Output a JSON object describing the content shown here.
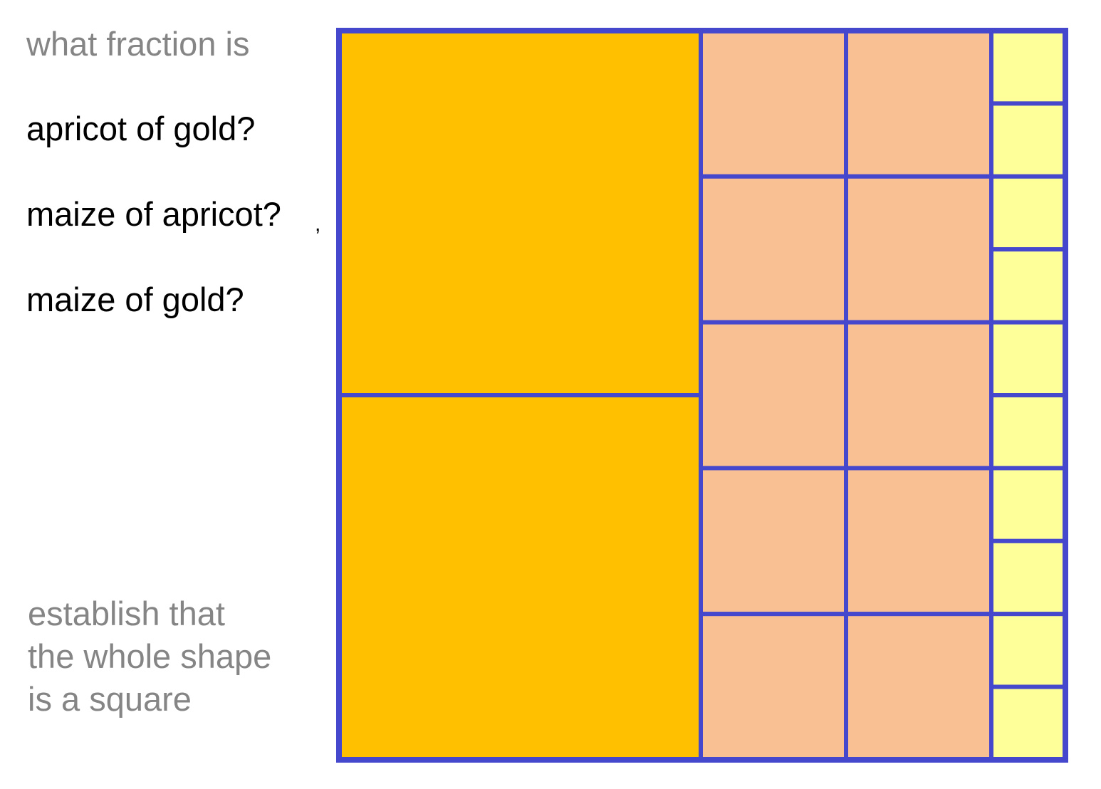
{
  "prompt": "what fraction is",
  "questions": [
    "apricot of gold?",
    "maize of apricot?",
    "maize of gold?"
  ],
  "stray_mark": ",",
  "note_lines": [
    "establish that",
    "the whole shape",
    "is a square"
  ],
  "colors": {
    "gold": "#FFC000",
    "apricot": "#F9C193",
    "maize": "#FFFF99",
    "border": "#4547CD",
    "grey_text": "#858585",
    "black_text": "#000000"
  },
  "shape": {
    "gold_pieces": 2,
    "apricot_pieces": 10,
    "maize_pieces": 10
  }
}
